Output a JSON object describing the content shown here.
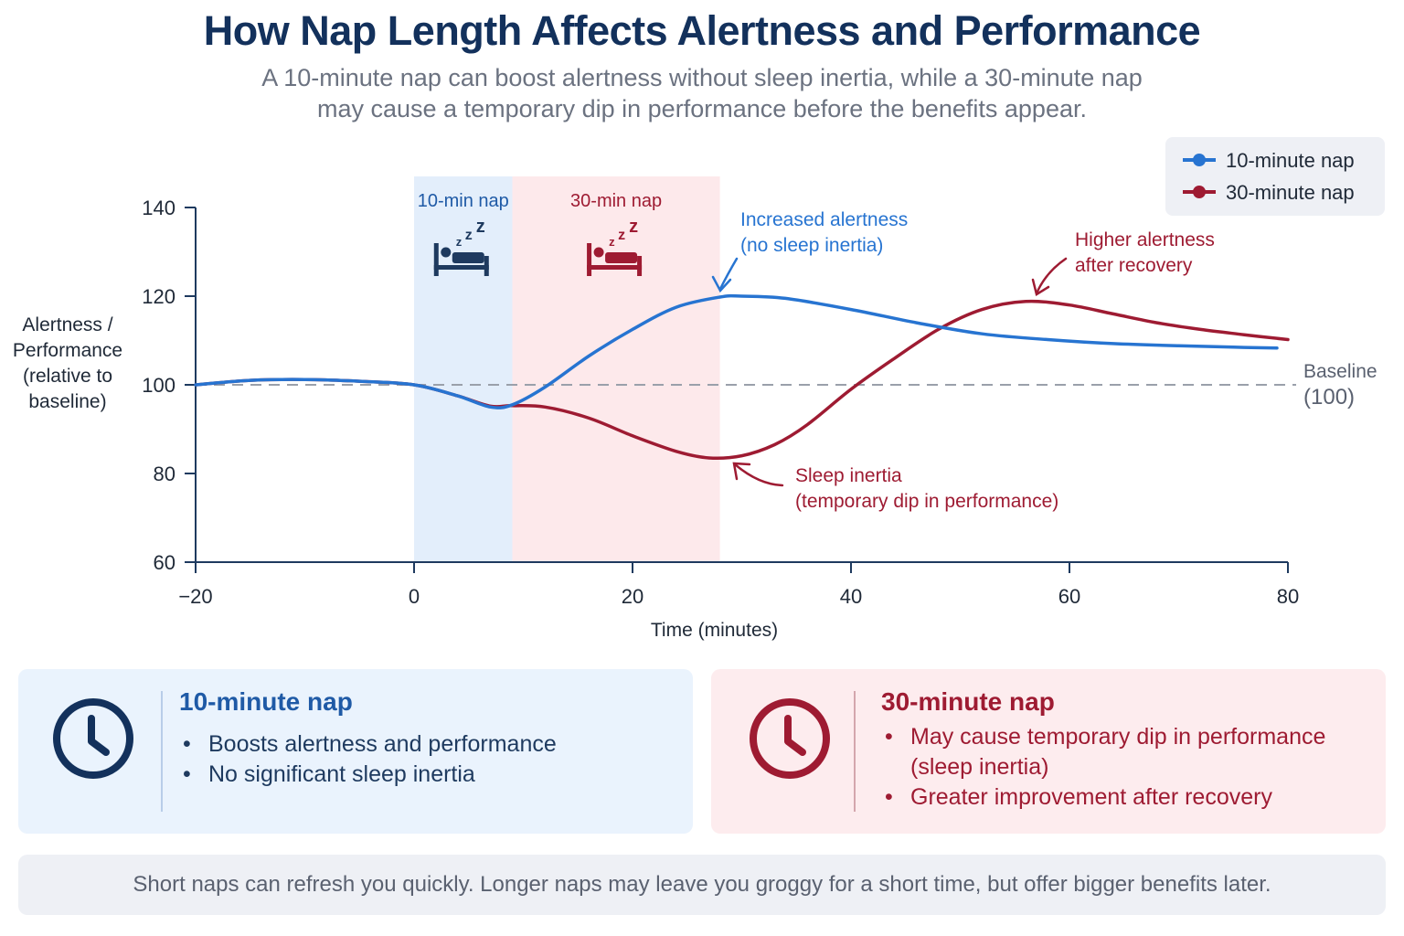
{
  "title": "How Nap Length Affects Alertness and Performance",
  "subtitle": "A 10-minute nap can boost alertness without sleep inertia, while a 30-minute nap may cause a temporary dip in performance before the benefits appear.",
  "colors": {
    "ten_minute": "#2774d1",
    "thirty_minute": "#9e1b32",
    "baseline": "#9aa0aa",
    "axis": "#1e3a5f",
    "ten_band": "#e3eefb",
    "thirty_band": "#fde9eb"
  },
  "chart_data": {
    "type": "line",
    "title": "",
    "xlabel": "Time (minutes)",
    "ylabel": "Alertness / Performance (relative to baseline)",
    "xlim": [
      -20,
      80
    ],
    "ylim": [
      60,
      140
    ],
    "x_ticks": [
      -20,
      0,
      20,
      40,
      60,
      80
    ],
    "y_ticks": [
      60,
      80,
      100,
      120,
      140
    ],
    "legend_position": "top-right",
    "grid": false,
    "baseline": {
      "value": 100,
      "label": "Baseline (100)"
    },
    "nap_periods": [
      {
        "label": "10-min nap",
        "start": 0,
        "end": 9
      },
      {
        "label": "30-min nap",
        "start": 9,
        "end": 28
      }
    ],
    "series": [
      {
        "name": "10-minute nap",
        "x": [
          -20,
          -15,
          -10,
          -5,
          0,
          4,
          7,
          9,
          12,
          16,
          20,
          24,
          28,
          30,
          34,
          40,
          46,
          52,
          58,
          64,
          70,
          75,
          79
        ],
        "y": [
          100,
          101,
          101.2,
          100.8,
          100,
          97.5,
          95,
          95.5,
          99.5,
          106.5,
          112.5,
          117.5,
          119.8,
          120,
          119.5,
          117,
          114,
          111.5,
          110.2,
          109.3,
          108.8,
          108.5,
          108.3
        ]
      },
      {
        "name": "30-minute nap",
        "x": [
          -20,
          -15,
          -10,
          -5,
          0,
          4,
          7,
          9,
          12,
          16,
          20,
          24,
          27,
          30,
          33,
          36,
          40,
          44,
          48,
          52,
          56,
          60,
          64,
          68,
          72,
          76,
          80
        ],
        "y": [
          100,
          101,
          101.2,
          100.8,
          100,
          97.5,
          95.2,
          95.3,
          95,
          92.5,
          88.5,
          85,
          83.5,
          84,
          86.5,
          91,
          99,
          106,
          112.5,
          117,
          118.8,
          118,
          116,
          114,
          112.5,
          111.3,
          110.2
        ]
      }
    ],
    "annotations": [
      {
        "text_lines": [
          "Increased alertness",
          "(no sleep inertia)"
        ],
        "series": "10-minute nap",
        "x": 31,
        "y": 120
      },
      {
        "text_lines": [
          "Higher alertness",
          "after recovery"
        ],
        "series": "30-minute nap",
        "x": 57,
        "y": 119
      },
      {
        "text_lines": [
          "Sleep inertia",
          "(temporary dip in performance)"
        ],
        "series": "30-minute nap",
        "x": 32,
        "y": 84
      }
    ]
  },
  "cards": {
    "ten": {
      "title": "10-minute nap",
      "icon": "clock-icon",
      "bullets": [
        "Boosts alertness and performance",
        "No significant sleep inertia"
      ]
    },
    "thirty": {
      "title": "30-minute nap",
      "icon": "clock-icon",
      "bullets": [
        "May cause temporary dip in performance (sleep inertia)",
        "Greater improvement after recovery"
      ]
    }
  },
  "footer": "Short naps can refresh you quickly. Longer naps may leave you groggy for a short time, but offer bigger benefits later."
}
